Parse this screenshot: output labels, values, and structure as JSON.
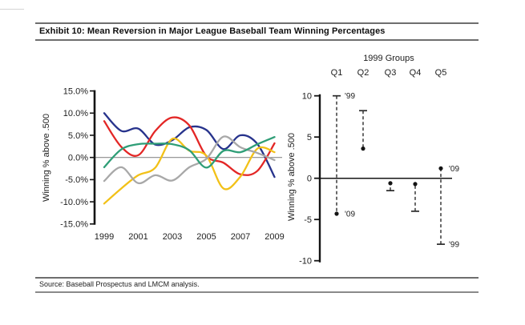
{
  "page": {
    "title": "Exhibit 10: Mean Reversion in Major League Baseball Team Winning Percentages",
    "source": "Source: Baseball Prospectus and LMCM analysis."
  },
  "chart_data": [
    {
      "id": "team-winning-percentage-lines",
      "type": "line",
      "title": "",
      "xlabel": "",
      "ylabel": "Winning % above .500",
      "ylim": [
        -15,
        15
      ],
      "grid": false,
      "legend": "none",
      "x": [
        1999,
        2000,
        2001,
        2002,
        2003,
        2004,
        2005,
        2006,
        2007,
        2008,
        2009
      ],
      "x_ticks": [
        1999,
        2001,
        2003,
        2005,
        2007,
        2009
      ],
      "y_ticks": [
        15,
        10,
        5,
        0,
        -5,
        -10,
        -15
      ],
      "y_tick_suffix": "%",
      "series": [
        {
          "name": "navy-group",
          "color": "#27338c",
          "values": [
            10.0,
            6.0,
            6.5,
            2.9,
            3.9,
            6.8,
            6.2,
            1.9,
            5.0,
            3.0,
            -4.4
          ]
        },
        {
          "name": "red-group",
          "color": "#e32726",
          "values": [
            8.2,
            2.4,
            0.5,
            6.0,
            9.0,
            7.2,
            0.3,
            -1.2,
            -3.8,
            -3.0,
            3.2
          ]
        },
        {
          "name": "gold-group",
          "color": "#f2c118",
          "values": [
            -10.4,
            -7.0,
            -4.0,
            -2.3,
            4.2,
            1.5,
            0.4,
            -7.0,
            -4.3,
            2.0,
            1.2
          ]
        },
        {
          "name": "gray-group",
          "color": "#a8a8a8",
          "values": [
            -5.3,
            -2.2,
            -5.8,
            -4.0,
            -5.2,
            -2.2,
            -0.3,
            4.7,
            2.3,
            1.0,
            -0.6
          ]
        },
        {
          "name": "green-group",
          "color": "#2f9e77",
          "values": [
            -2.2,
            1.8,
            3.0,
            3.1,
            3.0,
            1.6,
            -2.3,
            1.5,
            1.2,
            3.0,
            4.6
          ]
        }
      ]
    },
    {
      "id": "quintile-mean-reversion-ranges",
      "type": "range-dot",
      "title": "1999 Groups",
      "ylabel": "Winning % above .500",
      "ylim": [
        -10,
        10
      ],
      "y_ticks": [
        10,
        5,
        0,
        -5,
        -10
      ],
      "categories": [
        "Q1",
        "Q2",
        "Q3",
        "Q4",
        "Q5"
      ],
      "series": [
        {
          "name": "1999",
          "marker": "cap",
          "values": [
            10.0,
            8.2,
            -1.5,
            -4.0,
            -8.0
          ]
        },
        {
          "name": "2009",
          "marker": "dot",
          "values": [
            -4.3,
            3.6,
            -0.6,
            -0.7,
            1.2
          ]
        }
      ],
      "annotations": [
        {
          "category": "Q1",
          "series": "1999",
          "text": "'99"
        },
        {
          "category": "Q1",
          "series": "2009",
          "text": "'09"
        },
        {
          "category": "Q5",
          "series": "2009",
          "text": "'09"
        },
        {
          "category": "Q5",
          "series": "1999",
          "text": "'99"
        }
      ]
    }
  ]
}
